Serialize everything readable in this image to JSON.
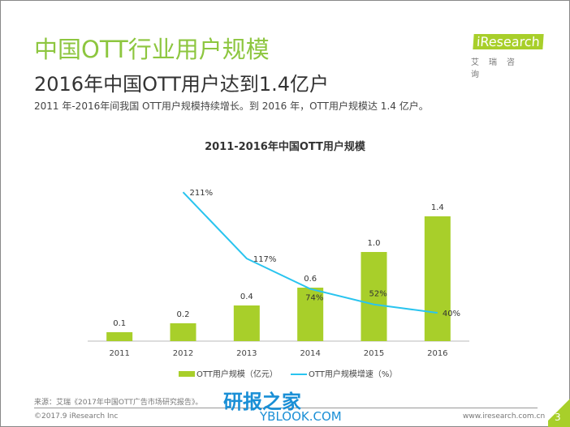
{
  "header": {
    "title": "中国OTT行业用户规模",
    "subtitle": "2016年中国OTT用户达到1.4亿户",
    "description": "2011 年-2016年间我国 OTT用户规模持续增长。到 2016 年，OTT用户规模达 1.4 亿户。"
  },
  "logo": {
    "brand": "iResearch",
    "sub": "艾瑞咨询"
  },
  "chart_data": {
    "type": "bar+line",
    "title": "2011-2016年中国OTT用户规模",
    "categories": [
      "2011",
      "2012",
      "2013",
      "2014",
      "2015",
      "2016"
    ],
    "series": [
      {
        "name": "OTT用户规模（亿元）",
        "type": "bar",
        "color": "#a8cf2a",
        "values": [
          0.1,
          0.2,
          0.4,
          0.6,
          1.0,
          1.4
        ],
        "labels": [
          "0.1",
          "0.2",
          "0.4",
          "0.6",
          "1.0",
          "1.4"
        ]
      },
      {
        "name": "OTT用户规模增速（%）",
        "type": "line",
        "color": "#29c4ef",
        "values": [
          null,
          211,
          117,
          74,
          52,
          40
        ],
        "labels": [
          "",
          "211%",
          "117%",
          "74%",
          "52%",
          "40%"
        ]
      }
    ],
    "legend": "bottom",
    "grid": false
  },
  "footer": {
    "source": "来源：艾瑞《2017年中国OTT广告市场研究报告》。",
    "copyright": "©2017.9 iResearch Inc",
    "url": "www.iresearch.com.cn",
    "page": "3"
  },
  "watermark": {
    "text": "研报之家",
    "sub": "YBLOOK.COM"
  }
}
